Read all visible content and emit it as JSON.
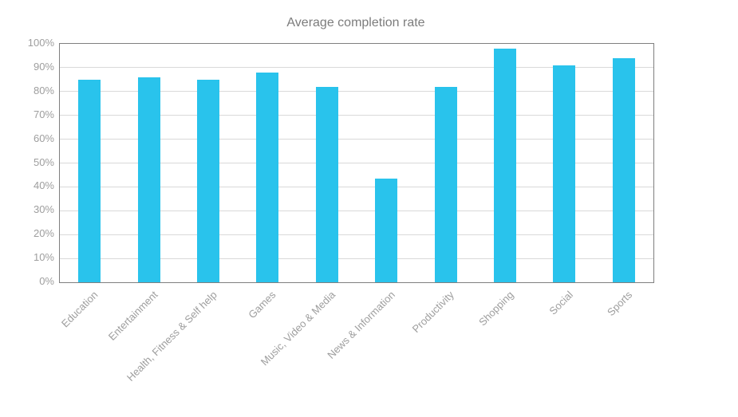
{
  "chart_data": {
    "type": "bar",
    "title": "Average completion rate",
    "categories": [
      "Education",
      "Entertainment",
      "Health, Fitness & Self help",
      "Games",
      "Music, Video & Media",
      "News & Information",
      "Productivity",
      "Shopping",
      "Social",
      "Sports"
    ],
    "values": [
      85,
      86,
      85,
      88,
      82,
      43.5,
      82,
      98,
      91,
      94
    ],
    "xlabel": "",
    "ylabel": "",
    "ylim": [
      0,
      100
    ],
    "ytick_step": 10,
    "ytick_suffix": "%",
    "grid": true,
    "legend": false,
    "colors": {
      "bar": "#29c3ec",
      "title": "#7c7c7c",
      "tick_label": "#9e9e9e",
      "gridline": "#d9d9d9",
      "plot_border": "#7f7f7f",
      "background": "#ffffff"
    }
  }
}
